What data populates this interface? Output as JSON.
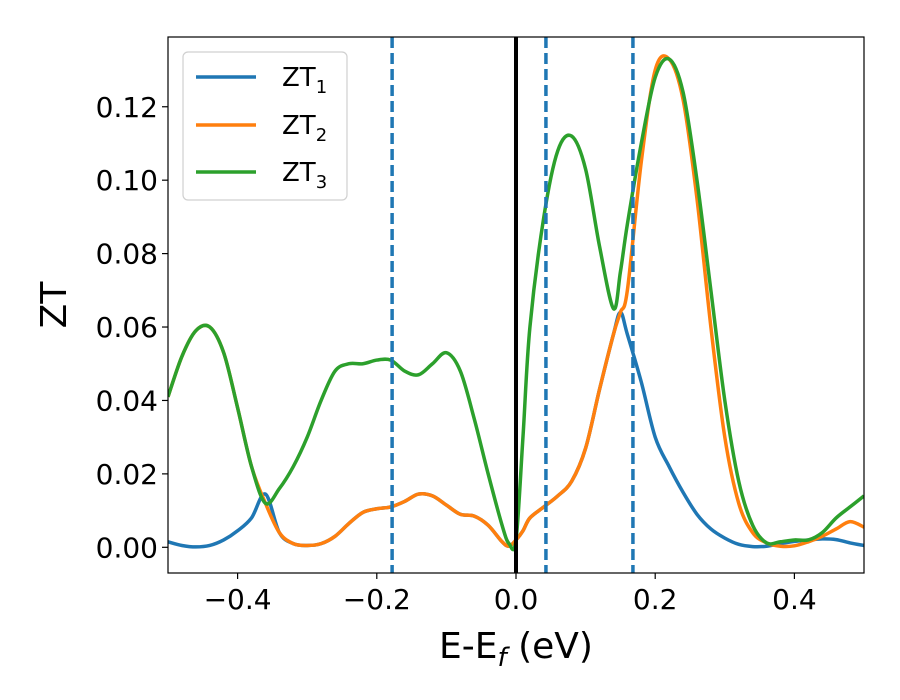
{
  "chart_data": {
    "type": "line",
    "xlabel": "E-E",
    "xlabel_sub": "f",
    "xlabel_unit": " (eV)",
    "ylabel": "ZT",
    "xlim": [
      -0.5,
      0.5
    ],
    "ylim": [
      -0.007,
      0.139
    ],
    "xticks": [
      -0.4,
      -0.2,
      0.0,
      0.2,
      0.4
    ],
    "xtick_labels": [
      "−0.4",
      "−0.2",
      "0.0",
      "0.2",
      "0.4"
    ],
    "yticks": [
      0.0,
      0.02,
      0.04,
      0.06,
      0.08,
      0.1,
      0.12
    ],
    "ytick_labels": [
      "0.00",
      "0.02",
      "0.04",
      "0.06",
      "0.08",
      "0.10",
      "0.12"
    ],
    "grid": false,
    "legend_position": "top-left",
    "vlines": [
      {
        "x": 0.0,
        "color": "#000000",
        "style": "solid"
      },
      {
        "x": -0.178,
        "color": "#1f77b4",
        "style": "dashed"
      },
      {
        "x": 0.043,
        "color": "#1f77b4",
        "style": "dashed"
      },
      {
        "x": 0.168,
        "color": "#1f77b4",
        "style": "dashed"
      }
    ],
    "series": [
      {
        "name": "ZT",
        "name_sub": "1",
        "color": "#1f77b4",
        "x": [
          -0.5,
          -0.48,
          -0.46,
          -0.44,
          -0.42,
          -0.4,
          -0.38,
          -0.36,
          -0.34,
          -0.32,
          -0.3,
          -0.28,
          -0.26,
          -0.24,
          -0.22,
          -0.2,
          -0.18,
          -0.16,
          -0.14,
          -0.12,
          -0.1,
          -0.08,
          -0.06,
          -0.04,
          -0.02,
          -0.01,
          0.0,
          0.01,
          0.02,
          0.04,
          0.06,
          0.08,
          0.1,
          0.12,
          0.14,
          0.15,
          0.16,
          0.18,
          0.2,
          0.22,
          0.24,
          0.26,
          0.28,
          0.3,
          0.32,
          0.34,
          0.36,
          0.38,
          0.4,
          0.42,
          0.44,
          0.46,
          0.48,
          0.5
        ],
        "y": [
          0.0015,
          0.0005,
          0.0001,
          0.0005,
          0.002,
          0.0045,
          0.008,
          0.0145,
          0.004,
          0.001,
          0.0005,
          0.001,
          0.003,
          0.0065,
          0.0095,
          0.0105,
          0.011,
          0.0125,
          0.0145,
          0.014,
          0.0115,
          0.009,
          0.0085,
          0.006,
          0.0015,
          0.0003,
          0.002,
          0.0045,
          0.008,
          0.011,
          0.014,
          0.018,
          0.027,
          0.043,
          0.058,
          0.064,
          0.058,
          0.045,
          0.03,
          0.022,
          0.015,
          0.009,
          0.005,
          0.0025,
          0.0008,
          0.0002,
          0.0003,
          0.001,
          0.0016,
          0.002,
          0.0023,
          0.0021,
          0.0012,
          0.0005
        ]
      },
      {
        "name": "ZT",
        "name_sub": "2",
        "color": "#ff7f0e",
        "x": [
          -0.5,
          -0.48,
          -0.46,
          -0.44,
          -0.42,
          -0.4,
          -0.38,
          -0.36,
          -0.34,
          -0.32,
          -0.3,
          -0.28,
          -0.26,
          -0.24,
          -0.22,
          -0.2,
          -0.18,
          -0.16,
          -0.14,
          -0.12,
          -0.1,
          -0.08,
          -0.06,
          -0.04,
          -0.02,
          -0.01,
          0.0,
          0.01,
          0.02,
          0.04,
          0.06,
          0.08,
          0.1,
          0.12,
          0.14,
          0.15,
          0.16,
          0.18,
          0.2,
          0.22,
          0.24,
          0.26,
          0.28,
          0.3,
          0.32,
          0.34,
          0.36,
          0.38,
          0.4,
          0.42,
          0.44,
          0.46,
          0.48,
          0.5
        ],
        "y": [
          0.041,
          0.052,
          0.059,
          0.06,
          0.053,
          0.038,
          0.022,
          0.012,
          0.004,
          0.001,
          0.0005,
          0.001,
          0.003,
          0.0065,
          0.0095,
          0.0105,
          0.011,
          0.0125,
          0.0145,
          0.014,
          0.0115,
          0.009,
          0.0085,
          0.006,
          0.0015,
          0.0003,
          0.002,
          0.0045,
          0.008,
          0.011,
          0.014,
          0.018,
          0.027,
          0.043,
          0.058,
          0.064,
          0.07,
          0.105,
          0.13,
          0.133,
          0.122,
          0.095,
          0.06,
          0.03,
          0.012,
          0.004,
          0.0012,
          0.0003,
          0.0004,
          0.0015,
          0.003,
          0.005,
          0.007,
          0.0055
        ]
      },
      {
        "name": "ZT",
        "name_sub": "3",
        "color": "#2ca02c",
        "x": [
          -0.5,
          -0.48,
          -0.46,
          -0.44,
          -0.42,
          -0.4,
          -0.38,
          -0.36,
          -0.34,
          -0.32,
          -0.3,
          -0.28,
          -0.26,
          -0.24,
          -0.22,
          -0.2,
          -0.18,
          -0.16,
          -0.14,
          -0.12,
          -0.1,
          -0.08,
          -0.06,
          -0.04,
          -0.02,
          -0.01,
          0.0,
          0.01,
          0.02,
          0.04,
          0.06,
          0.08,
          0.1,
          0.12,
          0.14,
          0.15,
          0.16,
          0.18,
          0.2,
          0.22,
          0.24,
          0.26,
          0.28,
          0.3,
          0.32,
          0.34,
          0.36,
          0.38,
          0.4,
          0.42,
          0.44,
          0.46,
          0.48,
          0.5
        ],
        "y": [
          0.041,
          0.052,
          0.059,
          0.06,
          0.053,
          0.038,
          0.022,
          0.012,
          0.016,
          0.022,
          0.03,
          0.04,
          0.048,
          0.05,
          0.05,
          0.051,
          0.051,
          0.048,
          0.047,
          0.05,
          0.053,
          0.048,
          0.035,
          0.02,
          0.006,
          0.001,
          0.002,
          0.03,
          0.06,
          0.09,
          0.108,
          0.112,
          0.103,
          0.082,
          0.065,
          0.075,
          0.088,
          0.11,
          0.128,
          0.133,
          0.124,
          0.1,
          0.07,
          0.04,
          0.018,
          0.006,
          0.0012,
          0.0015,
          0.002,
          0.002,
          0.004,
          0.008,
          0.011,
          0.014
        ]
      }
    ]
  }
}
